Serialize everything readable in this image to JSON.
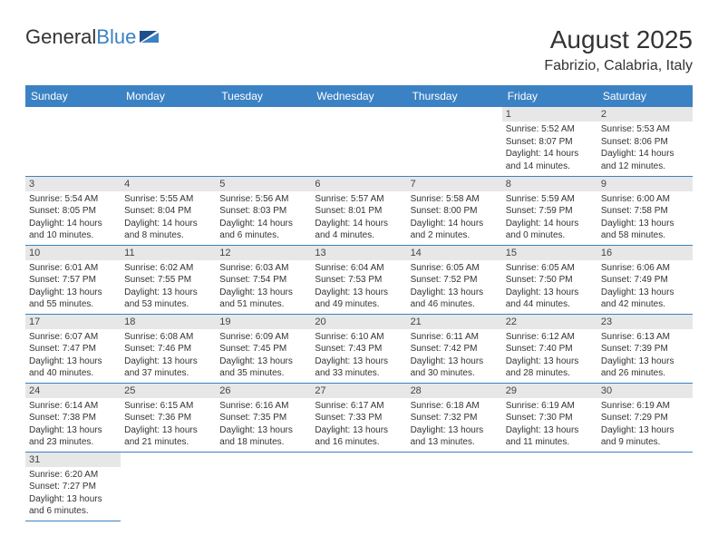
{
  "brand": {
    "name1": "General",
    "name2": "Blue"
  },
  "header": {
    "title": "August 2025",
    "location": "Fabrizio, Calabria, Italy"
  },
  "colors": {
    "accent": "#3b82c4",
    "daynum_bg": "#e7e7e7",
    "text": "#333333",
    "bg": "#ffffff"
  },
  "columns": [
    "Sunday",
    "Monday",
    "Tuesday",
    "Wednesday",
    "Thursday",
    "Friday",
    "Saturday"
  ],
  "weeks": [
    [
      null,
      null,
      null,
      null,
      null,
      {
        "n": "1",
        "sr": "Sunrise: 5:52 AM",
        "ss": "Sunset: 8:07 PM",
        "dl1": "Daylight: 14 hours",
        "dl2": "and 14 minutes."
      },
      {
        "n": "2",
        "sr": "Sunrise: 5:53 AM",
        "ss": "Sunset: 8:06 PM",
        "dl1": "Daylight: 14 hours",
        "dl2": "and 12 minutes."
      }
    ],
    [
      {
        "n": "3",
        "sr": "Sunrise: 5:54 AM",
        "ss": "Sunset: 8:05 PM",
        "dl1": "Daylight: 14 hours",
        "dl2": "and 10 minutes."
      },
      {
        "n": "4",
        "sr": "Sunrise: 5:55 AM",
        "ss": "Sunset: 8:04 PM",
        "dl1": "Daylight: 14 hours",
        "dl2": "and 8 minutes."
      },
      {
        "n": "5",
        "sr": "Sunrise: 5:56 AM",
        "ss": "Sunset: 8:03 PM",
        "dl1": "Daylight: 14 hours",
        "dl2": "and 6 minutes."
      },
      {
        "n": "6",
        "sr": "Sunrise: 5:57 AM",
        "ss": "Sunset: 8:01 PM",
        "dl1": "Daylight: 14 hours",
        "dl2": "and 4 minutes."
      },
      {
        "n": "7",
        "sr": "Sunrise: 5:58 AM",
        "ss": "Sunset: 8:00 PM",
        "dl1": "Daylight: 14 hours",
        "dl2": "and 2 minutes."
      },
      {
        "n": "8",
        "sr": "Sunrise: 5:59 AM",
        "ss": "Sunset: 7:59 PM",
        "dl1": "Daylight: 14 hours",
        "dl2": "and 0 minutes."
      },
      {
        "n": "9",
        "sr": "Sunrise: 6:00 AM",
        "ss": "Sunset: 7:58 PM",
        "dl1": "Daylight: 13 hours",
        "dl2": "and 58 minutes."
      }
    ],
    [
      {
        "n": "10",
        "sr": "Sunrise: 6:01 AM",
        "ss": "Sunset: 7:57 PM",
        "dl1": "Daylight: 13 hours",
        "dl2": "and 55 minutes."
      },
      {
        "n": "11",
        "sr": "Sunrise: 6:02 AM",
        "ss": "Sunset: 7:55 PM",
        "dl1": "Daylight: 13 hours",
        "dl2": "and 53 minutes."
      },
      {
        "n": "12",
        "sr": "Sunrise: 6:03 AM",
        "ss": "Sunset: 7:54 PM",
        "dl1": "Daylight: 13 hours",
        "dl2": "and 51 minutes."
      },
      {
        "n": "13",
        "sr": "Sunrise: 6:04 AM",
        "ss": "Sunset: 7:53 PM",
        "dl1": "Daylight: 13 hours",
        "dl2": "and 49 minutes."
      },
      {
        "n": "14",
        "sr": "Sunrise: 6:05 AM",
        "ss": "Sunset: 7:52 PM",
        "dl1": "Daylight: 13 hours",
        "dl2": "and 46 minutes."
      },
      {
        "n": "15",
        "sr": "Sunrise: 6:05 AM",
        "ss": "Sunset: 7:50 PM",
        "dl1": "Daylight: 13 hours",
        "dl2": "and 44 minutes."
      },
      {
        "n": "16",
        "sr": "Sunrise: 6:06 AM",
        "ss": "Sunset: 7:49 PM",
        "dl1": "Daylight: 13 hours",
        "dl2": "and 42 minutes."
      }
    ],
    [
      {
        "n": "17",
        "sr": "Sunrise: 6:07 AM",
        "ss": "Sunset: 7:47 PM",
        "dl1": "Daylight: 13 hours",
        "dl2": "and 40 minutes."
      },
      {
        "n": "18",
        "sr": "Sunrise: 6:08 AM",
        "ss": "Sunset: 7:46 PM",
        "dl1": "Daylight: 13 hours",
        "dl2": "and 37 minutes."
      },
      {
        "n": "19",
        "sr": "Sunrise: 6:09 AM",
        "ss": "Sunset: 7:45 PM",
        "dl1": "Daylight: 13 hours",
        "dl2": "and 35 minutes."
      },
      {
        "n": "20",
        "sr": "Sunrise: 6:10 AM",
        "ss": "Sunset: 7:43 PM",
        "dl1": "Daylight: 13 hours",
        "dl2": "and 33 minutes."
      },
      {
        "n": "21",
        "sr": "Sunrise: 6:11 AM",
        "ss": "Sunset: 7:42 PM",
        "dl1": "Daylight: 13 hours",
        "dl2": "and 30 minutes."
      },
      {
        "n": "22",
        "sr": "Sunrise: 6:12 AM",
        "ss": "Sunset: 7:40 PM",
        "dl1": "Daylight: 13 hours",
        "dl2": "and 28 minutes."
      },
      {
        "n": "23",
        "sr": "Sunrise: 6:13 AM",
        "ss": "Sunset: 7:39 PM",
        "dl1": "Daylight: 13 hours",
        "dl2": "and 26 minutes."
      }
    ],
    [
      {
        "n": "24",
        "sr": "Sunrise: 6:14 AM",
        "ss": "Sunset: 7:38 PM",
        "dl1": "Daylight: 13 hours",
        "dl2": "and 23 minutes."
      },
      {
        "n": "25",
        "sr": "Sunrise: 6:15 AM",
        "ss": "Sunset: 7:36 PM",
        "dl1": "Daylight: 13 hours",
        "dl2": "and 21 minutes."
      },
      {
        "n": "26",
        "sr": "Sunrise: 6:16 AM",
        "ss": "Sunset: 7:35 PM",
        "dl1": "Daylight: 13 hours",
        "dl2": "and 18 minutes."
      },
      {
        "n": "27",
        "sr": "Sunrise: 6:17 AM",
        "ss": "Sunset: 7:33 PM",
        "dl1": "Daylight: 13 hours",
        "dl2": "and 16 minutes."
      },
      {
        "n": "28",
        "sr": "Sunrise: 6:18 AM",
        "ss": "Sunset: 7:32 PM",
        "dl1": "Daylight: 13 hours",
        "dl2": "and 13 minutes."
      },
      {
        "n": "29",
        "sr": "Sunrise: 6:19 AM",
        "ss": "Sunset: 7:30 PM",
        "dl1": "Daylight: 13 hours",
        "dl2": "and 11 minutes."
      },
      {
        "n": "30",
        "sr": "Sunrise: 6:19 AM",
        "ss": "Sunset: 7:29 PM",
        "dl1": "Daylight: 13 hours",
        "dl2": "and 9 minutes."
      }
    ],
    [
      {
        "n": "31",
        "sr": "Sunrise: 6:20 AM",
        "ss": "Sunset: 7:27 PM",
        "dl1": "Daylight: 13 hours",
        "dl2": "and 6 minutes."
      },
      null,
      null,
      null,
      null,
      null,
      null
    ]
  ]
}
